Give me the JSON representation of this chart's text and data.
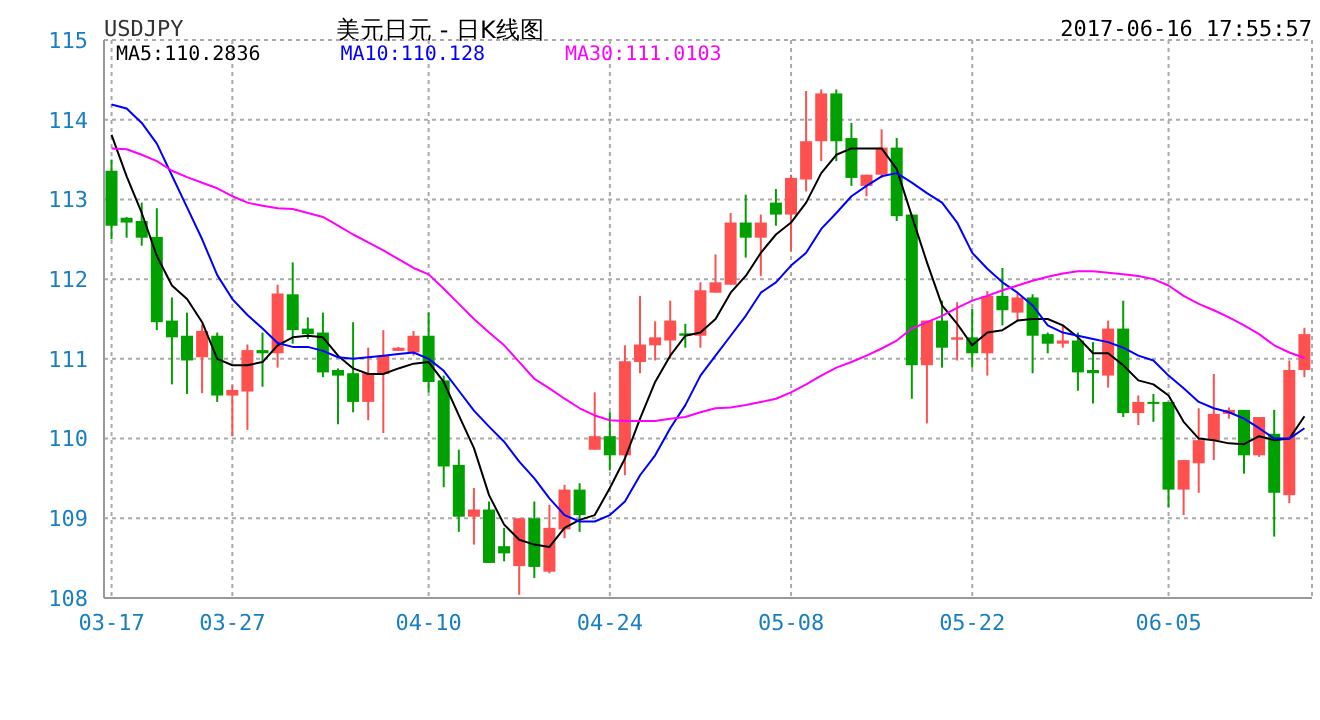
{
  "chart_data": {
    "type": "candlestick",
    "title": "美元日元 - 日K线图",
    "annotations": [
      "USDJPY",
      "2017-06-16 17:55:57"
    ],
    "categories": [
      "03-17",
      null,
      null,
      null,
      null,
      null,
      null,
      null,
      "03-27",
      null,
      null,
      null,
      null,
      null,
      null,
      null,
      null,
      null,
      null,
      null,
      null,
      "04-10",
      null,
      null,
      null,
      null,
      null,
      null,
      null,
      null,
      null,
      null,
      null,
      "04-24",
      null,
      null,
      null,
      null,
      null,
      null,
      null,
      null,
      null,
      null,
      null,
      "05-08",
      null,
      null,
      null,
      null,
      null,
      null,
      null,
      null,
      null,
      null,
      null,
      "05-22",
      null,
      null,
      null,
      null,
      null,
      null,
      null,
      null,
      null,
      null,
      null,
      null,
      "06-05",
      null,
      null,
      null,
      null,
      null,
      null,
      null,
      null,
      null
    ],
    "ohlc": [
      [
        113.36,
        113.5,
        112.5,
        112.67
      ],
      [
        112.77,
        112.78,
        112.52,
        112.71
      ],
      [
        112.73,
        112.96,
        112.42,
        112.52
      ],
      [
        112.53,
        112.89,
        111.36,
        111.46
      ],
      [
        111.48,
        111.77,
        110.68,
        111.27
      ],
      [
        111.29,
        111.58,
        110.56,
        110.98
      ],
      [
        111.02,
        111.43,
        110.57,
        111.35
      ],
      [
        111.29,
        111.33,
        110.46,
        110.54
      ],
      [
        110.54,
        110.67,
        110.03,
        110.61
      ],
      [
        110.59,
        111.18,
        110.11,
        111.11
      ],
      [
        111.11,
        111.33,
        110.65,
        111.07
      ],
      [
        111.07,
        111.93,
        110.89,
        111.82
      ],
      [
        111.81,
        112.21,
        111.19,
        111.36
      ],
      [
        111.38,
        111.52,
        111.25,
        111.31
      ],
      [
        111.33,
        111.58,
        110.77,
        110.83
      ],
      [
        110.86,
        110.88,
        110.18,
        110.79
      ],
      [
        110.82,
        111.46,
        110.33,
        110.46
      ],
      [
        110.46,
        111.14,
        110.23,
        110.82
      ],
      [
        110.81,
        111.36,
        110.07,
        111.04
      ],
      [
        111.1,
        111.15,
        111.1,
        111.14
      ],
      [
        111.08,
        111.35,
        111.04,
        111.29
      ],
      [
        111.29,
        111.58,
        110.58,
        110.71
      ],
      [
        110.73,
        110.79,
        109.39,
        109.65
      ],
      [
        109.67,
        109.86,
        108.83,
        109.02
      ],
      [
        109.02,
        109.38,
        108.67,
        109.11
      ],
      [
        109.11,
        109.21,
        108.44,
        108.44
      ],
      [
        108.65,
        108.88,
        108.46,
        108.56
      ],
      [
        108.4,
        109.0,
        108.04,
        109.0
      ],
      [
        109.0,
        109.21,
        108.25,
        108.39
      ],
      [
        108.33,
        109.17,
        108.31,
        108.88
      ],
      [
        108.86,
        109.42,
        108.75,
        109.36
      ],
      [
        109.36,
        109.44,
        108.83,
        109.04
      ],
      [
        109.86,
        110.58,
        109.86,
        110.03
      ],
      [
        110.03,
        110.33,
        109.6,
        109.79
      ],
      [
        109.79,
        111.17,
        109.54,
        110.97
      ],
      [
        110.96,
        111.79,
        110.82,
        111.18
      ],
      [
        111.17,
        111.47,
        110.98,
        111.27
      ],
      [
        111.23,
        111.73,
        111.0,
        111.48
      ],
      [
        111.32,
        111.44,
        111.14,
        111.29
      ],
      [
        111.29,
        111.96,
        111.14,
        111.86
      ],
      [
        111.83,
        112.31,
        111.83,
        111.96
      ],
      [
        111.93,
        112.83,
        111.93,
        112.71
      ],
      [
        112.71,
        113.06,
        112.27,
        112.52
      ],
      [
        112.52,
        112.81,
        112.04,
        112.71
      ],
      [
        112.96,
        113.13,
        112.67,
        112.81
      ],
      [
        112.81,
        113.31,
        112.35,
        113.27
      ],
      [
        113.25,
        114.36,
        113.1,
        113.73
      ],
      [
        113.73,
        114.38,
        113.48,
        114.33
      ],
      [
        114.33,
        114.38,
        113.48,
        113.73
      ],
      [
        113.77,
        113.96,
        113.17,
        113.27
      ],
      [
        113.17,
        113.31,
        113.04,
        113.31
      ],
      [
        113.31,
        113.88,
        113.27,
        113.65
      ],
      [
        113.65,
        113.77,
        112.73,
        112.79
      ],
      [
        112.81,
        112.81,
        110.5,
        110.92
      ],
      [
        110.92,
        111.48,
        110.19,
        111.48
      ],
      [
        111.48,
        111.73,
        110.89,
        111.14
      ],
      [
        111.24,
        111.71,
        110.98,
        111.27
      ],
      [
        111.27,
        111.63,
        110.89,
        111.07
      ],
      [
        111.07,
        111.85,
        110.79,
        111.79
      ],
      [
        111.79,
        112.14,
        111.42,
        111.61
      ],
      [
        111.58,
        111.83,
        111.48,
        111.77
      ],
      [
        111.77,
        111.81,
        110.82,
        111.29
      ],
      [
        111.31,
        111.33,
        111.07,
        111.19
      ],
      [
        111.19,
        111.42,
        111.14,
        111.23
      ],
      [
        111.23,
        111.33,
        110.6,
        110.83
      ],
      [
        110.86,
        111.21,
        110.44,
        110.82
      ],
      [
        110.79,
        111.48,
        110.64,
        111.38
      ],
      [
        111.38,
        111.73,
        110.27,
        110.32
      ],
      [
        110.32,
        110.54,
        110.17,
        110.46
      ],
      [
        110.46,
        110.56,
        110.21,
        110.44
      ],
      [
        110.46,
        110.46,
        109.14,
        109.36
      ],
      [
        109.36,
        109.73,
        109.04,
        109.73
      ],
      [
        109.69,
        110.38,
        109.32,
        109.98
      ],
      [
        109.98,
        110.81,
        109.73,
        110.31
      ],
      [
        110.31,
        110.39,
        110.25,
        110.36
      ],
      [
        110.36,
        110.36,
        109.56,
        109.79
      ],
      [
        109.79,
        110.27,
        109.77,
        110.27
      ],
      [
        110.06,
        110.36,
        108.77,
        109.32
      ],
      [
        109.29,
        110.98,
        109.19,
        110.86
      ],
      [
        110.86,
        111.39,
        110.77,
        111.31
      ]
    ],
    "colors": [
      "#00a000",
      "#00a000",
      "#00a000",
      "#00a000",
      "#00a000",
      "#00a000",
      "#ff5050",
      "#00a000",
      "#ff5050",
      "#ff5050",
      "#00a000",
      "#ff5050",
      "#00a000",
      "#00a000",
      "#00a000",
      "#00a000",
      "#00a000",
      "#ff5050",
      "#ff5050",
      "#ff5050",
      "#ff5050",
      "#00a000",
      "#00a000",
      "#00a000",
      "#ff5050",
      "#00a000",
      "#00a000",
      "#ff5050",
      "#00a000",
      "#ff5050",
      "#ff5050",
      "#00a000",
      "#ff5050",
      "#00a000",
      "#ff5050",
      "#ff5050",
      "#ff5050",
      "#ff5050",
      "#00a000",
      "#ff5050",
      "#ff5050",
      "#ff5050",
      "#00a000",
      "#ff5050",
      "#00a000",
      "#ff5050",
      "#ff5050",
      "#ff5050",
      "#00a000",
      "#00a000",
      "#ff5050",
      "#ff5050",
      "#00a000",
      "#00a000",
      "#ff5050",
      "#00a000",
      "#ff5050",
      "#00a000",
      "#ff5050",
      "#00a000",
      "#ff5050",
      "#00a000",
      "#00a000",
      "#ff5050",
      "#00a000",
      "#00a000",
      "#ff5050",
      "#00a000",
      "#ff5050",
      "#00a000",
      "#00a000",
      "#ff5050",
      "#ff5050",
      "#ff5050",
      "#ff5050",
      "#00a000",
      "#ff5050",
      "#00a000",
      "#ff5050",
      "#ff5050"
    ],
    "series": [
      {
        "name": "MA5:110.2836",
        "type": "line",
        "color": "#000000",
        "values": [
          113.81,
          113.29,
          112.83,
          112.29,
          111.92,
          111.75,
          111.46,
          111.0,
          110.92,
          110.92,
          110.96,
          111.17,
          111.27,
          111.29,
          111.27,
          111.04,
          110.88,
          110.81,
          110.81,
          110.88,
          110.94,
          110.96,
          110.71,
          110.29,
          109.88,
          109.29,
          108.92,
          108.73,
          108.67,
          108.64,
          108.88,
          108.98,
          109.04,
          109.38,
          109.75,
          110.25,
          110.71,
          111.04,
          111.29,
          111.33,
          111.5,
          111.83,
          112.04,
          112.33,
          112.56,
          112.71,
          112.96,
          113.33,
          113.56,
          113.64,
          113.64,
          113.64,
          113.38,
          112.79,
          112.21,
          111.67,
          111.44,
          111.17,
          111.33,
          111.36,
          111.48,
          111.5,
          111.5,
          111.42,
          111.27,
          111.07,
          111.07,
          110.92,
          110.73,
          110.68,
          110.54,
          110.21,
          110.0,
          109.98,
          109.94,
          109.93,
          110.03,
          109.98,
          110.0,
          110.28
        ]
      },
      {
        "name": "MA10:110.128",
        "type": "line",
        "color": "#0000ff",
        "values": [
          114.19,
          114.14,
          113.96,
          113.7,
          113.3,
          112.9,
          112.5,
          112.05,
          111.75,
          111.55,
          111.38,
          111.2,
          111.15,
          111.15,
          111.1,
          111.02,
          111.0,
          111.02,
          111.04,
          111.06,
          111.08,
          111.0,
          110.85,
          110.6,
          110.35,
          110.15,
          109.96,
          109.71,
          109.5,
          109.25,
          109.04,
          108.96,
          108.96,
          109.04,
          109.21,
          109.54,
          109.79,
          110.13,
          110.42,
          110.79,
          111.04,
          111.29,
          111.54,
          111.83,
          111.96,
          112.17,
          112.33,
          112.63,
          112.83,
          113.04,
          113.17,
          113.29,
          113.33,
          113.21,
          113.08,
          112.96,
          112.71,
          112.33,
          112.13,
          111.96,
          111.83,
          111.67,
          111.42,
          111.33,
          111.29,
          111.25,
          111.21,
          111.14,
          111.04,
          110.98,
          110.79,
          110.63,
          110.46,
          110.38,
          110.33,
          110.25,
          110.13,
          110.0,
          110.0,
          110.13
        ]
      },
      {
        "name": "MA30:111.0103",
        "type": "line",
        "color": "#ff00ff",
        "values": [
          113.64,
          113.63,
          113.56,
          113.48,
          113.36,
          113.28,
          113.21,
          113.14,
          113.04,
          112.96,
          112.92,
          112.89,
          112.88,
          112.83,
          112.78,
          112.67,
          112.56,
          112.46,
          112.36,
          112.25,
          112.14,
          112.06,
          111.88,
          111.69,
          111.5,
          111.33,
          111.17,
          110.96,
          110.75,
          110.63,
          110.5,
          110.38,
          110.29,
          110.23,
          110.22,
          110.22,
          110.22,
          110.25,
          110.27,
          110.33,
          110.38,
          110.39,
          110.42,
          110.46,
          110.5,
          110.58,
          110.68,
          110.79,
          110.89,
          110.96,
          111.04,
          111.13,
          111.23,
          111.38,
          111.46,
          111.54,
          111.64,
          111.73,
          111.79,
          111.86,
          111.92,
          111.98,
          112.03,
          112.07,
          112.1,
          112.1,
          112.08,
          112.06,
          112.04,
          112.0,
          111.92,
          111.79,
          111.69,
          111.61,
          111.52,
          111.42,
          111.31,
          111.17,
          111.08,
          111.01
        ]
      }
    ],
    "ylim": [
      108,
      115
    ],
    "yticks": [
      108,
      109,
      110,
      111,
      112,
      113,
      114,
      115
    ],
    "grid": true,
    "legend": "top left"
  }
}
